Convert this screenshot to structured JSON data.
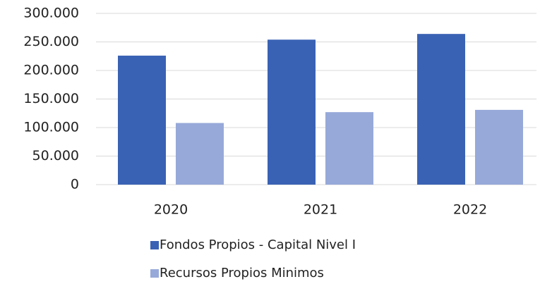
{
  "chart_data": {
    "type": "bar",
    "categories": [
      "2020",
      "2021",
      "2022"
    ],
    "series": [
      {
        "name": "Fondos Propios - Capital Nivel I",
        "color": "#3a62b4",
        "values": [
          226000,
          254000,
          264000
        ]
      },
      {
        "name": "Recursos Propios Minimos",
        "color": "#97a9d9",
        "values": [
          108000,
          127000,
          131000
        ]
      }
    ],
    "ylim": [
      0,
      300000
    ],
    "yticks": [
      0,
      {
        "value": 50000,
        "label": "50.000"
      },
      {
        "value": 100000,
        "label": "100.000"
      },
      {
        "value": 150000,
        "label": "150.000"
      },
      {
        "value": 200000,
        "label": "200.000"
      },
      {
        "value": 250000,
        "label": "250.000"
      },
      {
        "value": 300000,
        "label": "300.000"
      }
    ],
    "grid": true,
    "legend": "bottom"
  }
}
